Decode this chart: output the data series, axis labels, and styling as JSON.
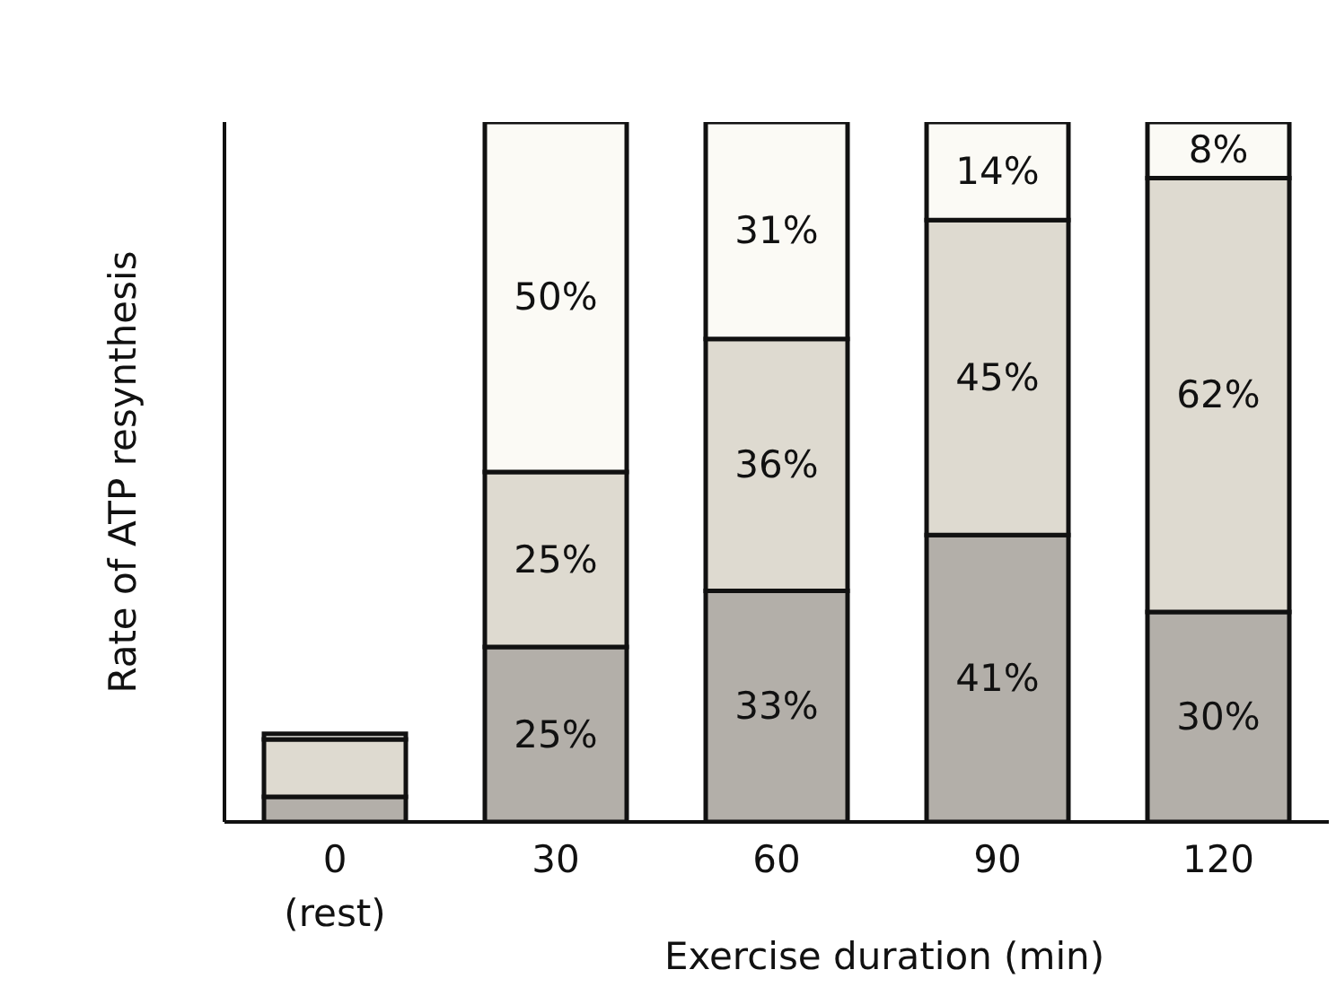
{
  "chart_data": {
    "type": "bar",
    "stacked": true,
    "xlabel": "Exercise duration (min)",
    "ylabel": "Rate of ATP resynthesis",
    "categories": [
      "0\n(rest)",
      "30",
      "60",
      "90",
      "120"
    ],
    "series": [
      {
        "color": "#b3afa9",
        "values": [
          3.6,
          25,
          33,
          41,
          30
        ],
        "value_labels": [
          null,
          "25%",
          "33%",
          "41%",
          "30%"
        ]
      },
      {
        "color": "#dedad0",
        "values": [
          8.2,
          25,
          36,
          45,
          62
        ],
        "value_labels": [
          null,
          "25%",
          "36%",
          "45%",
          "62%"
        ]
      },
      {
        "color": "#fbfaf5",
        "values": [
          0.8,
          50,
          31,
          14,
          8
        ],
        "value_labels": [
          null,
          "50%",
          "31%",
          "14%",
          "8%"
        ]
      }
    ],
    "ylim": [
      0,
      100
    ],
    "grid": false,
    "legend": false
  }
}
